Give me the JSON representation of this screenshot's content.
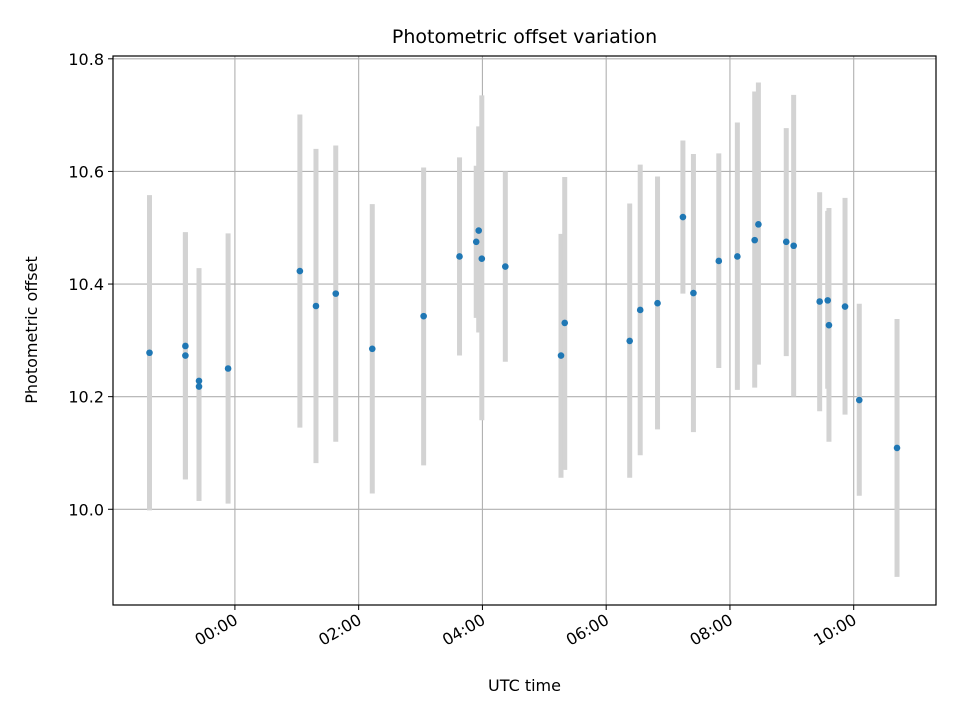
{
  "chart_data": {
    "type": "scatter",
    "title": "Photometric offset variation",
    "xlabel": "UTC time",
    "ylabel": "Photometric offset",
    "x_unit": "hours relative to 00:00 UTC",
    "xlim": [
      -1.97,
      11.33
    ],
    "ylim": [
      9.83,
      10.805
    ],
    "grid": true,
    "xticks": [
      {
        "value": 0,
        "label": "00:00"
      },
      {
        "value": 2,
        "label": "02:00"
      },
      {
        "value": 4,
        "label": "04:00"
      },
      {
        "value": 6,
        "label": "06:00"
      },
      {
        "value": 8,
        "label": "08:00"
      },
      {
        "value": 10,
        "label": "10:00"
      }
    ],
    "yticks": [
      {
        "value": 10.0,
        "label": "10.0"
      },
      {
        "value": 10.2,
        "label": "10.2"
      },
      {
        "value": 10.4,
        "label": "10.4"
      },
      {
        "value": 10.6,
        "label": "10.6"
      },
      {
        "value": 10.8,
        "label": "10.8"
      }
    ],
    "series": [
      {
        "name": "offset",
        "marker_color": "#1f77b4",
        "errorbar_color": "#d3d3d3",
        "points": [
          {
            "x": -1.38,
            "y": 10.278,
            "lo": 9.998,
            "hi": 10.558
          },
          {
            "x": -0.8,
            "y": 10.29,
            "lo": 10.053,
            "hi": 10.492
          },
          {
            "x": -0.8,
            "y": 10.273,
            "lo": 10.053,
            "hi": 10.492
          },
          {
            "x": -0.58,
            "y": 10.228,
            "lo": 10.015,
            "hi": 10.428
          },
          {
            "x": -0.58,
            "y": 10.218,
            "lo": 10.015,
            "hi": 10.428
          },
          {
            "x": -0.11,
            "y": 10.25,
            "lo": 10.01,
            "hi": 10.49
          },
          {
            "x": 1.05,
            "y": 10.423,
            "lo": 10.145,
            "hi": 10.701
          },
          {
            "x": 1.31,
            "y": 10.361,
            "lo": 10.082,
            "hi": 10.64
          },
          {
            "x": 1.63,
            "y": 10.383,
            "lo": 10.12,
            "hi": 10.646
          },
          {
            "x": 2.22,
            "y": 10.285,
            "lo": 10.028,
            "hi": 10.542
          },
          {
            "x": 3.05,
            "y": 10.343,
            "lo": 10.078,
            "hi": 10.607
          },
          {
            "x": 3.63,
            "y": 10.449,
            "lo": 10.273,
            "hi": 10.625
          },
          {
            "x": 3.9,
            "y": 10.475,
            "lo": 10.34,
            "hi": 10.61
          },
          {
            "x": 3.94,
            "y": 10.495,
            "lo": 10.314,
            "hi": 10.68
          },
          {
            "x": 3.99,
            "y": 10.445,
            "lo": 10.158,
            "hi": 10.735
          },
          {
            "x": 4.37,
            "y": 10.431,
            "lo": 10.262,
            "hi": 10.6
          },
          {
            "x": 5.27,
            "y": 10.273,
            "lo": 10.056,
            "hi": 10.489
          },
          {
            "x": 5.33,
            "y": 10.331,
            "lo": 10.07,
            "hi": 10.59
          },
          {
            "x": 6.38,
            "y": 10.299,
            "lo": 10.056,
            "hi": 10.543
          },
          {
            "x": 6.55,
            "y": 10.354,
            "lo": 10.096,
            "hi": 10.612
          },
          {
            "x": 6.83,
            "y": 10.366,
            "lo": 10.142,
            "hi": 10.591
          },
          {
            "x": 7.24,
            "y": 10.519,
            "lo": 10.383,
            "hi": 10.655
          },
          {
            "x": 7.41,
            "y": 10.384,
            "lo": 10.137,
            "hi": 10.631
          },
          {
            "x": 7.82,
            "y": 10.441,
            "lo": 10.251,
            "hi": 10.632
          },
          {
            "x": 8.12,
            "y": 10.449,
            "lo": 10.212,
            "hi": 10.687
          },
          {
            "x": 8.4,
            "y": 10.478,
            "lo": 10.216,
            "hi": 10.742
          },
          {
            "x": 8.46,
            "y": 10.506,
            "lo": 10.257,
            "hi": 10.758
          },
          {
            "x": 8.91,
            "y": 10.475,
            "lo": 10.272,
            "hi": 10.677
          },
          {
            "x": 9.03,
            "y": 10.468,
            "lo": 10.2,
            "hi": 10.736
          },
          {
            "x": 9.45,
            "y": 10.369,
            "lo": 10.174,
            "hi": 10.563
          },
          {
            "x": 9.58,
            "y": 10.371,
            "lo": 10.214,
            "hi": 10.53
          },
          {
            "x": 9.6,
            "y": 10.327,
            "lo": 10.12,
            "hi": 10.535
          },
          {
            "x": 9.86,
            "y": 10.36,
            "lo": 10.168,
            "hi": 10.553
          },
          {
            "x": 10.09,
            "y": 10.194,
            "lo": 10.024,
            "hi": 10.365
          },
          {
            "x": 10.7,
            "y": 10.109,
            "lo": 9.88,
            "hi": 10.338
          }
        ]
      }
    ]
  }
}
